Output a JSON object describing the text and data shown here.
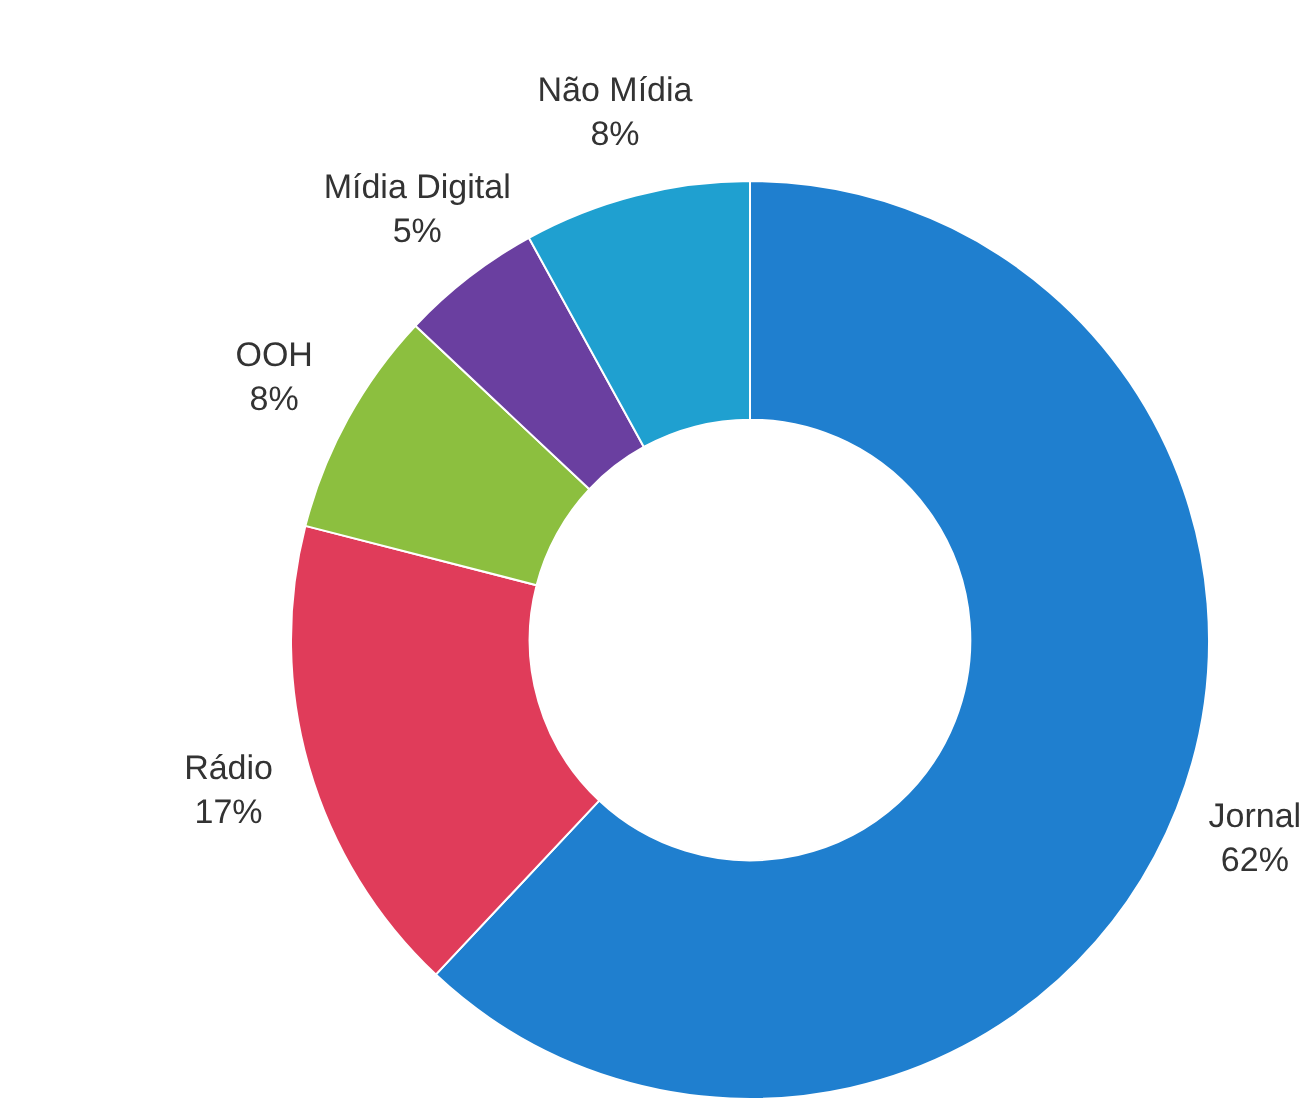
{
  "chart_data": {
    "type": "donut",
    "categories": [
      "Jornal",
      "Rádio",
      "OOH",
      "Mídia Digital",
      "Não Mídia"
    ],
    "values": [
      62,
      17,
      8,
      5,
      8
    ],
    "value_labels": [
      "62%",
      "17%",
      "8%",
      "5%",
      "8%"
    ],
    "colors": [
      "#1f7fcf",
      "#e03c5a",
      "#8cbf3f",
      "#6a3fa0",
      "#1fa0d0"
    ]
  }
}
